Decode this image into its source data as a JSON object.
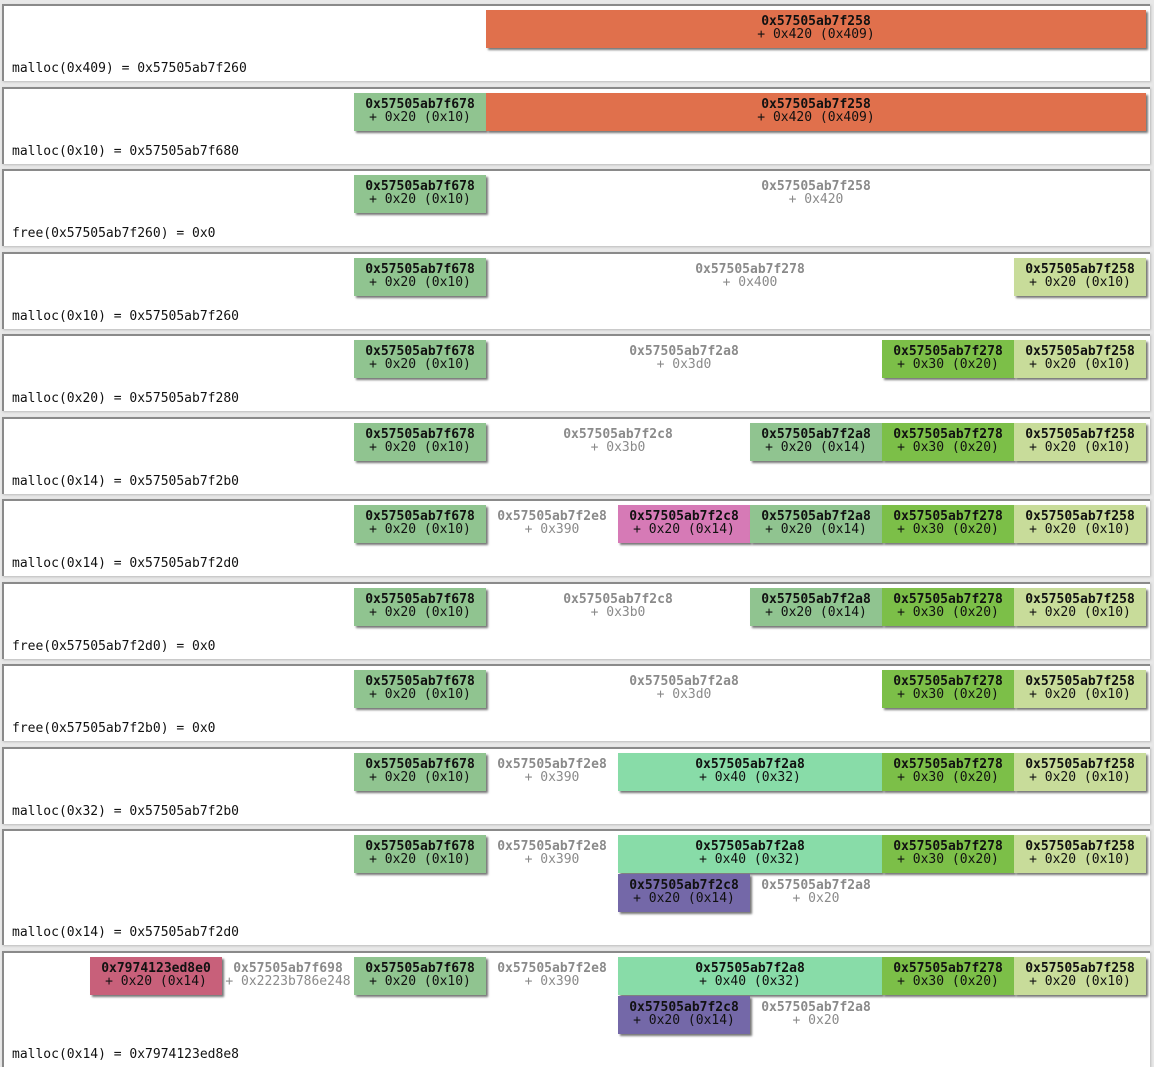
{
  "rows": [
    {
      "blocks": [
        {
          "addr": "0x57505ab7f258",
          "size": "+ 0x420 (0x409)",
          "color": "#e0704c"
        }
      ],
      "caption": "malloc(0x409) = 0x57505ab7f260"
    },
    {
      "blocks": [
        {
          "addr": "0x57505ab7f678",
          "size": "+ 0x20 (0x10)",
          "color": "#90c490"
        },
        {
          "addr": "0x57505ab7f258",
          "size": "+ 0x420 (0x409)",
          "color": "#e0704c"
        }
      ],
      "caption": "malloc(0x10) = 0x57505ab7f680"
    },
    {
      "blocks": [
        {
          "addr": "0x57505ab7f678",
          "size": "+ 0x20 (0x10)",
          "color": "#90c490"
        },
        {
          "addr": "0x57505ab7f258",
          "size": "+ 0x420"
        }
      ],
      "caption": "free(0x57505ab7f260) = 0x0"
    },
    {
      "blocks": [
        {
          "addr": "0x57505ab7f678",
          "size": "+ 0x20 (0x10)",
          "color": "#90c490"
        },
        {
          "addr": "0x57505ab7f278",
          "size": "+ 0x400"
        },
        {
          "addr": "0x57505ab7f258",
          "size": "+ 0x20 (0x10)",
          "color": "#c8dc9a"
        }
      ],
      "caption": "malloc(0x10) = 0x57505ab7f260"
    },
    {
      "blocks": [
        {
          "addr": "0x57505ab7f678",
          "size": "+ 0x20 (0x10)",
          "color": "#90c490"
        },
        {
          "addr": "0x57505ab7f2a8",
          "size": "+ 0x3d0"
        },
        {
          "addr": "0x57505ab7f278",
          "size": "+ 0x30 (0x20)",
          "color": "#7cbf48"
        },
        {
          "addr": "0x57505ab7f258",
          "size": "+ 0x20 (0x10)",
          "color": "#c8dc9a"
        }
      ],
      "caption": "malloc(0x20) = 0x57505ab7f280"
    },
    {
      "blocks": [
        {
          "addr": "0x57505ab7f678",
          "size": "+ 0x20 (0x10)",
          "color": "#90c490"
        },
        {
          "addr": "0x57505ab7f2c8",
          "size": "+ 0x3b0"
        },
        {
          "addr": "0x57505ab7f2a8",
          "size": "+ 0x20 (0x14)",
          "color": "#90c490"
        },
        {
          "addr": "0x57505ab7f278",
          "size": "+ 0x30 (0x20)",
          "color": "#7cbf48"
        },
        {
          "addr": "0x57505ab7f258",
          "size": "+ 0x20 (0x10)",
          "color": "#c8dc9a"
        }
      ],
      "caption": "malloc(0x14) = 0x57505ab7f2b0"
    },
    {
      "blocks": [
        {
          "addr": "0x57505ab7f678",
          "size": "+ 0x20 (0x10)",
          "color": "#90c490"
        },
        {
          "addr": "0x57505ab7f2e8",
          "size": "+ 0x390"
        },
        {
          "addr": "0x57505ab7f2c8",
          "size": "+ 0x20 (0x14)",
          "color": "#d67ab6"
        },
        {
          "addr": "0x57505ab7f2a8",
          "size": "+ 0x20 (0x14)",
          "color": "#90c490"
        },
        {
          "addr": "0x57505ab7f278",
          "size": "+ 0x30 (0x20)",
          "color": "#7cbf48"
        },
        {
          "addr": "0x57505ab7f258",
          "size": "+ 0x20 (0x10)",
          "color": "#c8dc9a"
        }
      ],
      "caption": "malloc(0x14) = 0x57505ab7f2d0"
    },
    {
      "blocks": [
        {
          "addr": "0x57505ab7f678",
          "size": "+ 0x20 (0x10)",
          "color": "#90c490"
        },
        {
          "addr": "0x57505ab7f2c8",
          "size": "+ 0x3b0"
        },
        {
          "addr": "0x57505ab7f2a8",
          "size": "+ 0x20 (0x14)",
          "color": "#90c490"
        },
        {
          "addr": "0x57505ab7f278",
          "size": "+ 0x30 (0x20)",
          "color": "#7cbf48"
        },
        {
          "addr": "0x57505ab7f258",
          "size": "+ 0x20 (0x10)",
          "color": "#c8dc9a"
        }
      ],
      "caption": "free(0x57505ab7f2d0) = 0x0"
    },
    {
      "blocks": [
        {
          "addr": "0x57505ab7f678",
          "size": "+ 0x20 (0x10)",
          "color": "#90c490"
        },
        {
          "addr": "0x57505ab7f2a8",
          "size": "+ 0x3d0"
        },
        {
          "addr": "0x57505ab7f278",
          "size": "+ 0x30 (0x20)",
          "color": "#7cbf48"
        },
        {
          "addr": "0x57505ab7f258",
          "size": "+ 0x20 (0x10)",
          "color": "#c8dc9a"
        }
      ],
      "caption": "free(0x57505ab7f2b0) = 0x0"
    },
    {
      "blocks": [
        {
          "addr": "0x57505ab7f678",
          "size": "+ 0x20 (0x10)",
          "color": "#90c490"
        },
        {
          "addr": "0x57505ab7f2e8",
          "size": "+ 0x390"
        },
        {
          "addr": "0x57505ab7f2a8",
          "size": "+ 0x40 (0x32)",
          "color": "#88dca8"
        },
        {
          "addr": "0x57505ab7f278",
          "size": "+ 0x30 (0x20)",
          "color": "#7cbf48"
        },
        {
          "addr": "0x57505ab7f258",
          "size": "+ 0x20 (0x10)",
          "color": "#c8dc9a"
        }
      ],
      "caption": "malloc(0x32) = 0x57505ab7f2b0"
    },
    {
      "blocks": [
        {
          "addr": "0x57505ab7f678",
          "size": "+ 0x20 (0x10)",
          "color": "#90c490"
        },
        {
          "addr": "0x57505ab7f2e8",
          "size": "+ 0x390"
        },
        {
          "addr": "0x57505ab7f2a8",
          "size": "+ 0x40 (0x32)",
          "color": "#88dca8"
        },
        {
          "addr": "0x57505ab7f278",
          "size": "+ 0x30 (0x20)",
          "color": "#7cbf48"
        },
        {
          "addr": "0x57505ab7f258",
          "size": "+ 0x20 (0x10)",
          "color": "#c8dc9a"
        },
        {
          "addr": "0x57505ab7f2c8",
          "size": "+ 0x20 (0x14)",
          "color": "#7468a8"
        },
        {
          "addr": "0x57505ab7f2a8",
          "size": "+ 0x20"
        }
      ],
      "caption": "malloc(0x14) = 0x57505ab7f2d0"
    },
    {
      "blocks": [
        {
          "addr": "0x7974123ed8e0",
          "size": "+ 0x20 (0x14)",
          "color": "#c8607a"
        },
        {
          "addr": "0x57505ab7f698",
          "size": "+ 0x2223b786e248"
        },
        {
          "addr": "0x57505ab7f678",
          "size": "+ 0x20 (0x10)",
          "color": "#90c490"
        },
        {
          "addr": "0x57505ab7f2e8",
          "size": "+ 0x390"
        },
        {
          "addr": "0x57505ab7f2a8",
          "size": "+ 0x40 (0x32)",
          "color": "#88dca8"
        },
        {
          "addr": "0x57505ab7f278",
          "size": "+ 0x30 (0x20)",
          "color": "#7cbf48"
        },
        {
          "addr": "0x57505ab7f258",
          "size": "+ 0x20 (0x10)",
          "color": "#c8dc9a"
        },
        {
          "addr": "0x57505ab7f2c8",
          "size": "+ 0x20 (0x14)",
          "color": "#7468a8"
        },
        {
          "addr": "0x57505ab7f2a8",
          "size": "+ 0x20"
        }
      ],
      "caption": "malloc(0x14) = 0x7974123ed8e8"
    }
  ]
}
